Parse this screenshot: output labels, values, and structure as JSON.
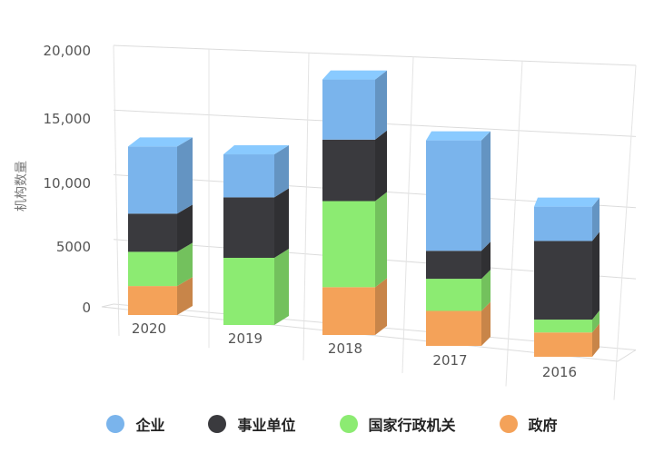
{
  "chart_data": {
    "type": "bar",
    "stacked": true,
    "three_d": true,
    "categories": [
      "2020",
      "2019",
      "2018",
      "2017",
      "2016"
    ],
    "ylabel": "机构数量",
    "xlabel": "",
    "ylim": [
      0,
      20000
    ],
    "yticks": [
      0,
      5000,
      10000,
      15000,
      20000
    ],
    "ytick_labels": [
      "0",
      "5000",
      "10,000",
      "15,000",
      "20,000"
    ],
    "grid": true,
    "legend_position": "bottom",
    "series": [
      {
        "name": "政府",
        "color": "#f4a259",
        "values": [
          2200,
          0,
          3500,
          2500,
          1700
        ]
      },
      {
        "name": "国家行政机关",
        "color": "#8ceb72",
        "values": [
          2600,
          5000,
          6300,
          2300,
          900
        ]
      },
      {
        "name": "事业单位",
        "color": "#3a3a3e",
        "values": [
          2900,
          4500,
          4500,
          2000,
          5500
        ]
      },
      {
        "name": "企业",
        "color": "#7ab4ec",
        "values": [
          5100,
          3200,
          4400,
          7900,
          2400
        ]
      }
    ],
    "legend_order": [
      "企业",
      "事业单位",
      "国家行政机关",
      "政府"
    ]
  }
}
